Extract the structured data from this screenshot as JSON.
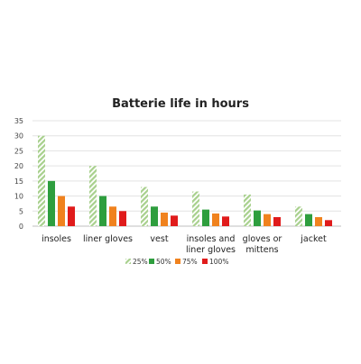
{
  "chart_data": {
    "type": "bar",
    "title": "Batterie life in hours",
    "xlabel": "",
    "ylabel": "",
    "ylim": [
      0,
      35
    ],
    "yticks": [
      0,
      5,
      10,
      15,
      20,
      25,
      30,
      35
    ],
    "grid": true,
    "legend_position": "bottom",
    "categories": [
      [
        "insoles"
      ],
      [
        "liner gloves"
      ],
      [
        "vest"
      ],
      [
        "insoles and",
        "liner gloves"
      ],
      [
        "gloves or",
        "mittens"
      ],
      [
        "jacket"
      ]
    ],
    "series": [
      {
        "name": "25%",
        "color": "#a8d08d",
        "pattern": "striped",
        "values": [
          30,
          20,
          13,
          11.5,
          10.5,
          6.5
        ]
      },
      {
        "name": "50%",
        "color": "#2e9e3e",
        "pattern": "solid",
        "values": [
          15,
          10,
          6.5,
          5.5,
          5.2,
          4
        ]
      },
      {
        "name": "75%",
        "color": "#f0821e",
        "pattern": "solid",
        "values": [
          10,
          6.5,
          4.5,
          4.2,
          4,
          3
        ]
      },
      {
        "name": "100%",
        "color": "#e01b1b",
        "pattern": "solid",
        "values": [
          6.5,
          5,
          3.5,
          3.2,
          3,
          2
        ]
      }
    ]
  }
}
